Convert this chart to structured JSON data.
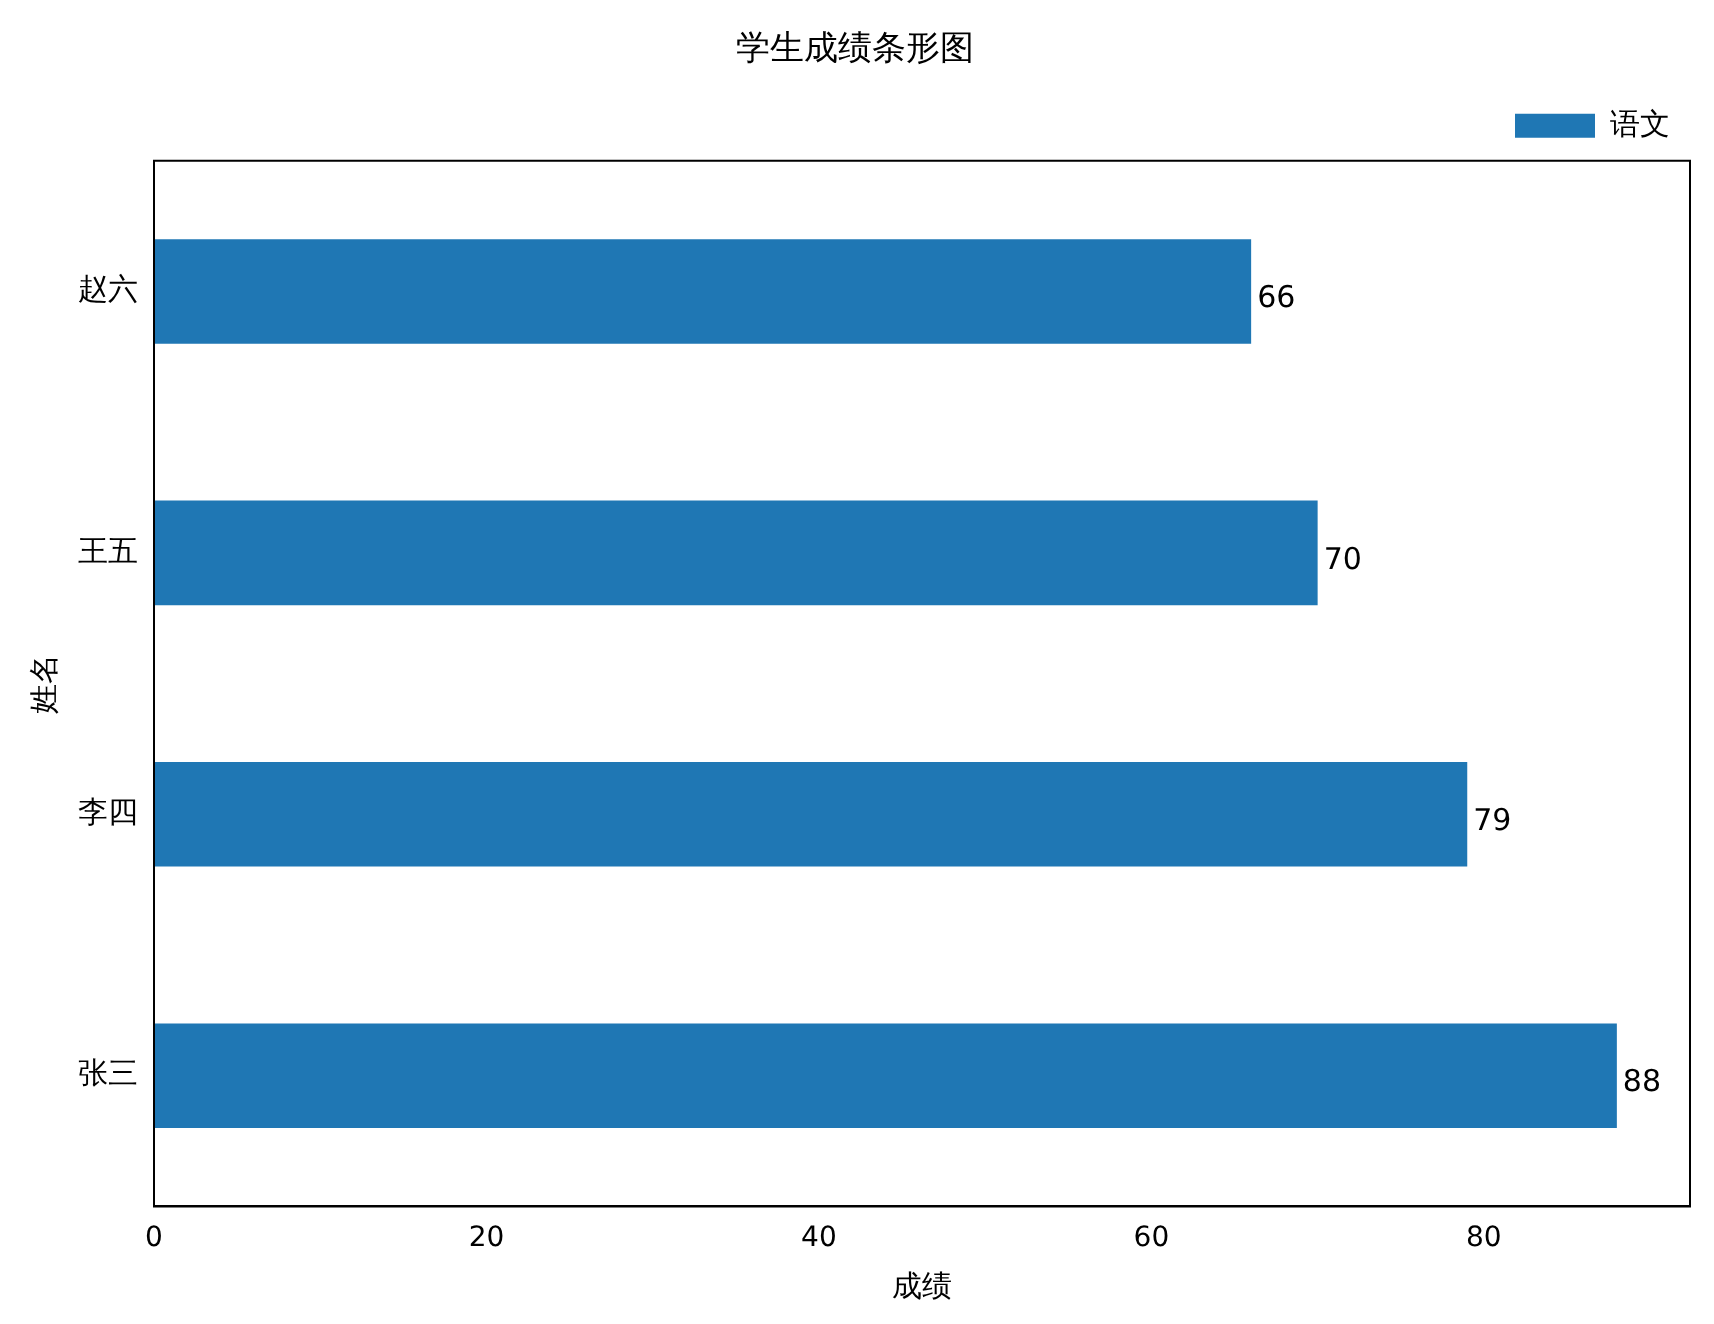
{
  "chart_data": {
    "type": "bar",
    "orientation": "horizontal",
    "title": "学生成绩条形图",
    "xlabel": "成绩",
    "ylabel": "姓名",
    "categories": [
      "赵六",
      "王五",
      "李四",
      "张三"
    ],
    "series": [
      {
        "name": "语文",
        "color": "#1f77b4",
        "values": [
          66,
          70,
          79,
          88
        ]
      }
    ],
    "xlim": [
      0,
      92.4
    ],
    "xticks": [
      0,
      20,
      40,
      60,
      80
    ],
    "data_labels": true,
    "legend": "top right",
    "grid": false
  }
}
